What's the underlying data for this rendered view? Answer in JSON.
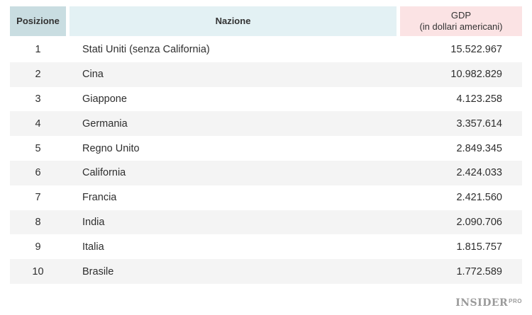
{
  "table": {
    "headers": {
      "position": "Posizione",
      "nation": "Nazione",
      "gdp_line1": "GDP",
      "gdp_line2": "(in dollari americani)"
    },
    "rows": [
      {
        "rank": "1",
        "nation": "Stati Uniti (senza California)",
        "gdp": "15.522.967"
      },
      {
        "rank": "2",
        "nation": "Cina",
        "gdp": "10.982.829"
      },
      {
        "rank": "3",
        "nation": "Giappone",
        "gdp": "4.123.258"
      },
      {
        "rank": "4",
        "nation": "Germania",
        "gdp": "3.357.614"
      },
      {
        "rank": "5",
        "nation": "Regno Unito",
        "gdp": "2.849.345"
      },
      {
        "rank": "6",
        "nation": "California",
        "gdp": "2.424.033"
      },
      {
        "rank": "7",
        "nation": "Francia",
        "gdp": "2.421.560"
      },
      {
        "rank": "8",
        "nation": "India",
        "gdp": "2.090.706"
      },
      {
        "rank": "9",
        "nation": "Italia",
        "gdp": "1.815.757"
      },
      {
        "rank": "10",
        "nation": "Brasile",
        "gdp": "1.772.589"
      }
    ]
  },
  "logo": {
    "main": "INSIDER",
    "suffix": "PRO"
  },
  "colors": {
    "header_position_bg": "#c9dde1",
    "header_nation_bg": "#e3f1f4",
    "header_gdp_bg": "#fbe3e4",
    "row_alt_bg": "#f4f4f4"
  }
}
